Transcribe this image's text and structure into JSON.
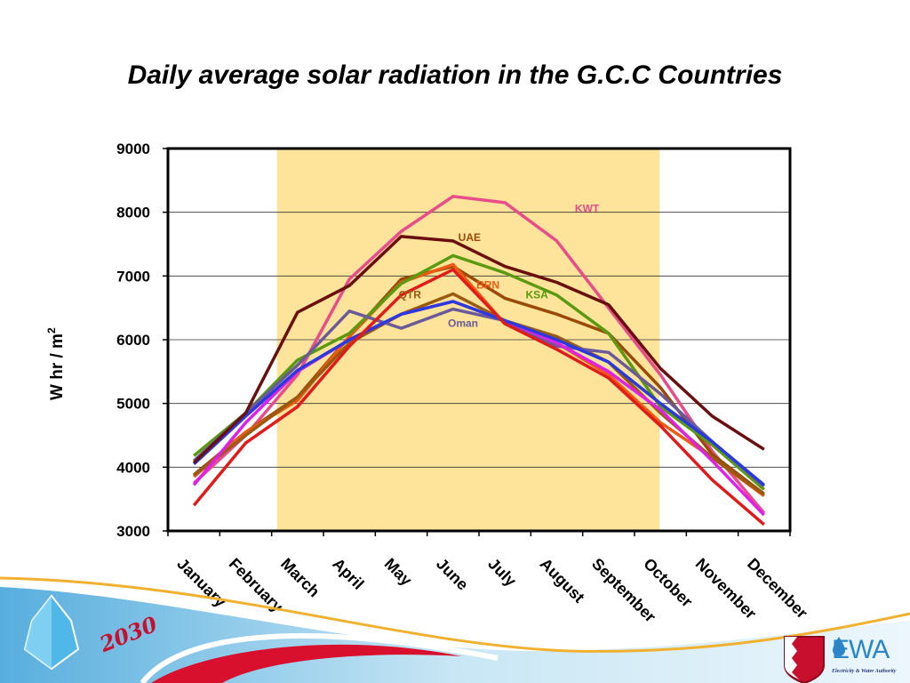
{
  "title": "Daily average solar radiation in the G.C.C Countries",
  "footer": {
    "vision_text": "2030",
    "logo_text": "EWA",
    "org_name": "Electricity & Water Authority"
  },
  "chart_data": {
    "type": "line",
    "title": "Daily average solar radiation in the G.C.C Countries",
    "xlabel": "",
    "ylabel_main": "W hr / m",
    "ylabel_sup": "2",
    "ylim": [
      3000,
      9000
    ],
    "yticks": [
      3000,
      4000,
      5000,
      6000,
      7000,
      8000,
      9000
    ],
    "grid": true,
    "highlight": {
      "from": "March",
      "to": "October",
      "color": "#fde49a"
    },
    "categories": [
      "January",
      "February",
      "March",
      "April",
      "May",
      "June",
      "July",
      "August",
      "September",
      "October",
      "November",
      "December"
    ],
    "series": [
      {
        "name": "KWT",
        "color": "#e84c8b",
        "label_month": 7.35,
        "label_value": 8000,
        "values": [
          3750,
          4500,
          5450,
          6950,
          7700,
          8250,
          8150,
          7550,
          6500,
          5450,
          4250,
          3280
        ]
      },
      {
        "name": "UAE",
        "color": "#9a4a08",
        "label_month": 5.1,
        "label_value": 7550,
        "values": [
          3880,
          4550,
          5100,
          6050,
          6950,
          7150,
          6650,
          6400,
          6100,
          5250,
          4200,
          3580
        ]
      },
      {
        "name": "BRN",
        "color": "#ef5a12",
        "label_month": 5.45,
        "label_value": 6800,
        "values": [
          3850,
          4550,
          5050,
          6050,
          6900,
          7180,
          6250,
          5950,
          5450,
          4700,
          4150,
          3550
        ]
      },
      {
        "name": "KSA",
        "color": "#5a9a10",
        "label_month": 6.4,
        "label_value": 6650,
        "values": [
          4180,
          4850,
          5680,
          6100,
          6880,
          7320,
          7050,
          6700,
          6100,
          4950,
          4350,
          3650
        ]
      },
      {
        "name": "QTR",
        "color": "#9a5a10",
        "label_month": 3.95,
        "label_value": 6650,
        "values": [
          3870,
          4500,
          5100,
          5950,
          6400,
          6720,
          6300,
          6050,
          5650,
          4850,
          4150,
          3570
        ]
      },
      {
        "name": "Oman",
        "color": "#6a5a9a",
        "label_month": 4.9,
        "label_value": 6200,
        "values": [
          4100,
          4850,
          5600,
          6450,
          6180,
          6480,
          6300,
          5900,
          5800,
          5150,
          4400,
          3700
        ]
      },
      {
        "name": "",
        "color": "#e020e8",
        "values": [
          3720,
          4700,
          5500,
          6000,
          6400,
          6600,
          6300,
          5950,
          5500,
          4900,
          4100,
          3250
        ]
      },
      {
        "name": "",
        "color": "#2a3ae0",
        "values": [
          4050,
          4800,
          5520,
          6000,
          6400,
          6600,
          6300,
          6000,
          5650,
          5000,
          4400,
          3720
        ]
      },
      {
        "name": "",
        "color": "#e21a1a",
        "values": [
          3400,
          4380,
          4950,
          5900,
          6700,
          7100,
          6250,
          5850,
          5400,
          4650,
          3800,
          3100
        ]
      },
      {
        "name": "",
        "color": "#6a0f0f",
        "values": [
          4070,
          4850,
          6430,
          6850,
          7620,
          7550,
          7150,
          6900,
          6550,
          5550,
          4800,
          4280
        ]
      }
    ]
  }
}
